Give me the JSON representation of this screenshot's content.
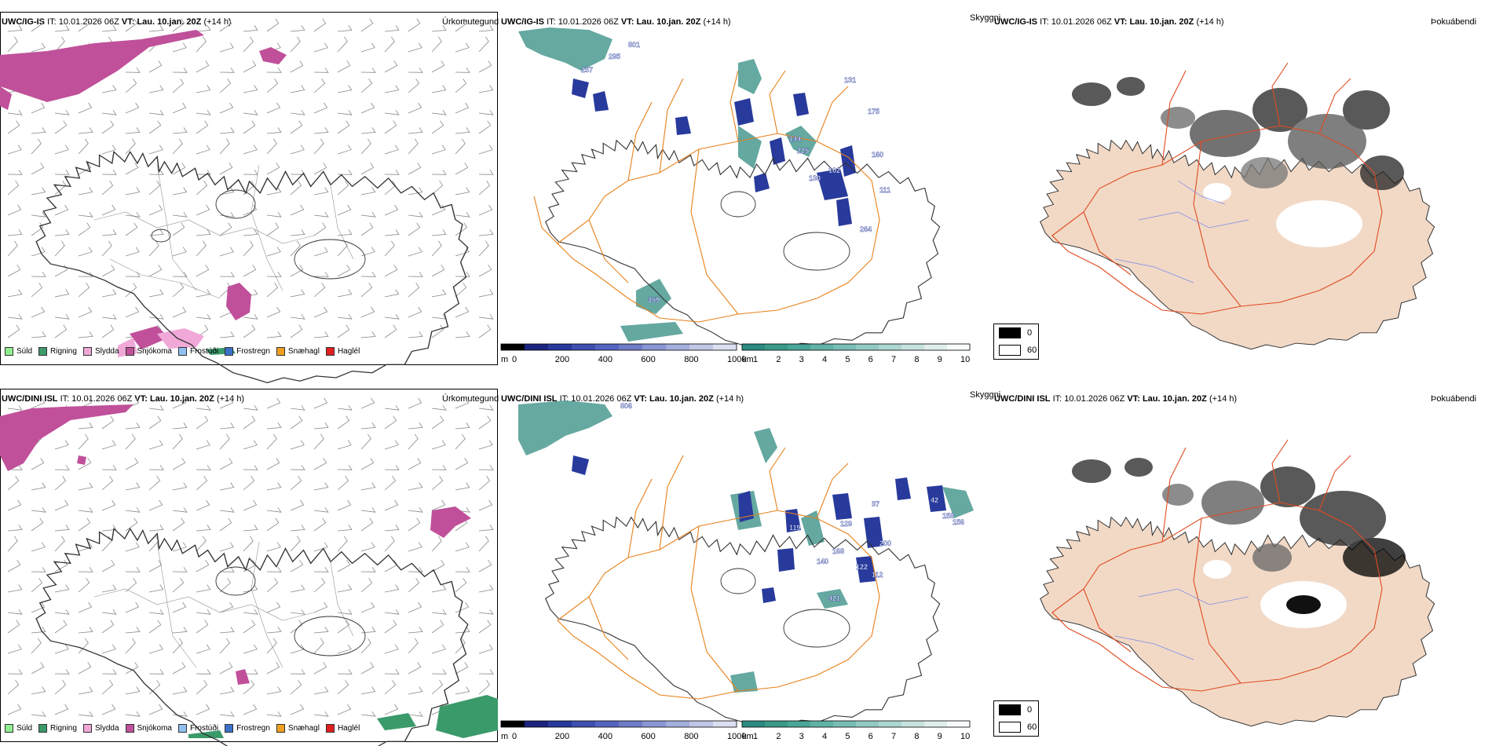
{
  "header": {
    "it_label": "IT:",
    "it_value": "10.01.2026 06Z",
    "vt_label": "VT:",
    "vt_value": "Lau. 10.jan. 20Z",
    "lead": "(+14 h)"
  },
  "rows": [
    {
      "model": "UWC/IG-IS"
    },
    {
      "model": "UWC/DINI ISL"
    }
  ],
  "panel_titles": {
    "precip_type": "Úrkomutegund",
    "visibility": "Skyggni",
    "fog": "Þokuábendi"
  },
  "precip_legend": [
    {
      "label": "Súld",
      "color": "#90ee90"
    },
    {
      "label": "Rigning",
      "color": "#3a9a6a"
    },
    {
      "label": "Slydda",
      "color": "#f0a8d8"
    },
    {
      "label": "Snjókoma",
      "color": "#c0509a"
    },
    {
      "label": "Frostúði",
      "color": "#90c0f0"
    },
    {
      "label": "Frostregn",
      "color": "#3a70c8"
    },
    {
      "label": "Snæhagl",
      "color": "#f0a020"
    },
    {
      "label": "Haglél",
      "color": "#e02020"
    }
  ],
  "visibility_colorbar_m": {
    "unit": "m",
    "ticks": [
      "0",
      "200",
      "400",
      "600",
      "800",
      "1000"
    ]
  },
  "visibility_colorbar_km": {
    "unit": "km",
    "ticks": [
      "1",
      "2",
      "3",
      "4",
      "5",
      "6",
      "7",
      "8",
      "9",
      "10"
    ]
  },
  "fog_legend": [
    {
      "label": "0",
      "color": "#000000"
    },
    {
      "label": "60",
      "color": "#ffffff"
    }
  ],
  "vis_labels_top": [
    "801",
    "295",
    "257",
    "131",
    "175",
    "144",
    "225",
    "160",
    "102",
    "111",
    "130",
    "264",
    "359"
  ],
  "vis_labels_bottom": [
    "806",
    "37",
    "119",
    "129",
    "168",
    "200",
    "42",
    "158",
    "122",
    "112",
    "421",
    "140",
    "156"
  ],
  "colors": {
    "snow": "#c0509a",
    "rain": "#3a9a6a",
    "vis_low": "#283a9c",
    "vis_high": "#3a9a8a",
    "roads": "#e8801a",
    "land_fog": "#f2d9c6"
  }
}
